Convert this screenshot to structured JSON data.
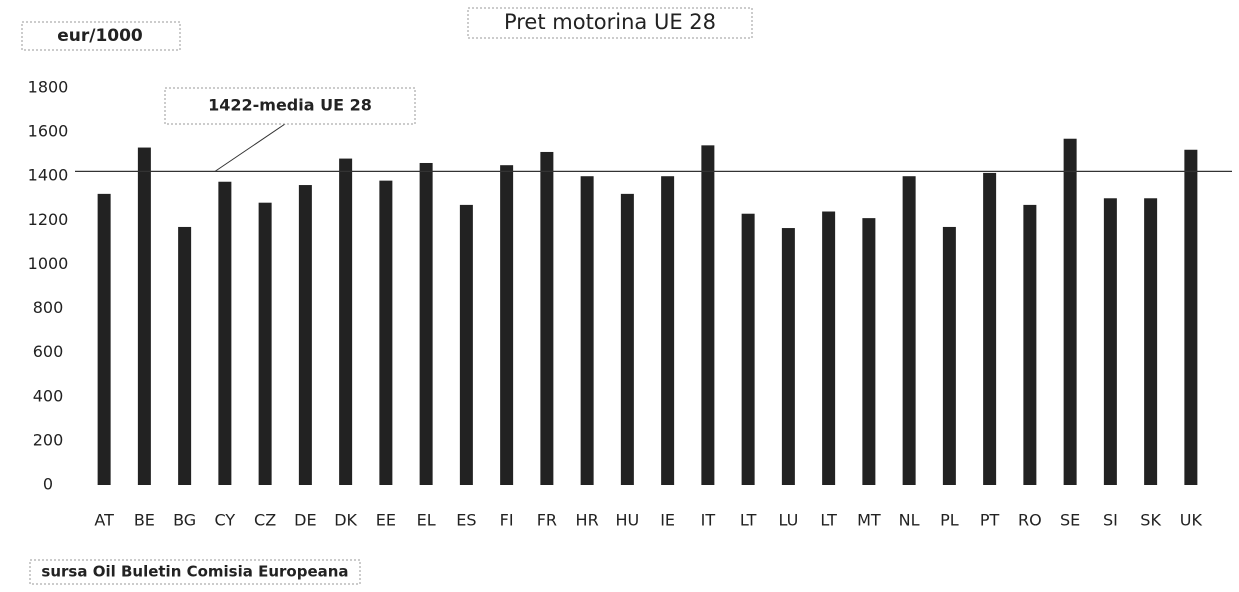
{
  "chart_data": {
    "type": "bar",
    "title": "Pret motorina UE 28",
    "y_axis_label": "eur/1000",
    "source": "sursa Oil Buletin Comisia Europeana",
    "categories": [
      "AT",
      "BE",
      "BG",
      "CY",
      "CZ",
      "DE",
      "DK",
      "EE",
      "EL",
      "ES",
      "FI",
      "FR",
      "HR",
      "HU",
      "IE",
      "IT",
      "LT",
      "LU",
      "LT",
      "MT",
      "NL",
      "PL",
      "PT",
      "RO",
      "SE",
      "SI",
      "SK",
      "UK"
    ],
    "values": [
      1320,
      1530,
      1170,
      1375,
      1280,
      1360,
      1480,
      1380,
      1460,
      1270,
      1450,
      1510,
      1400,
      1320,
      1400,
      1540,
      1230,
      1165,
      1240,
      1210,
      1400,
      1170,
      1415,
      1270,
      1570,
      1300,
      1300,
      1520
    ],
    "color": "#222222",
    "mean_line": {
      "value": 1422,
      "label": "1422-media UE 28"
    },
    "ylim": [
      0,
      1800
    ],
    "yticks": [
      0,
      200,
      400,
      600,
      800,
      1000,
      1200,
      1400,
      1600,
      1800
    ],
    "grid": false
  }
}
